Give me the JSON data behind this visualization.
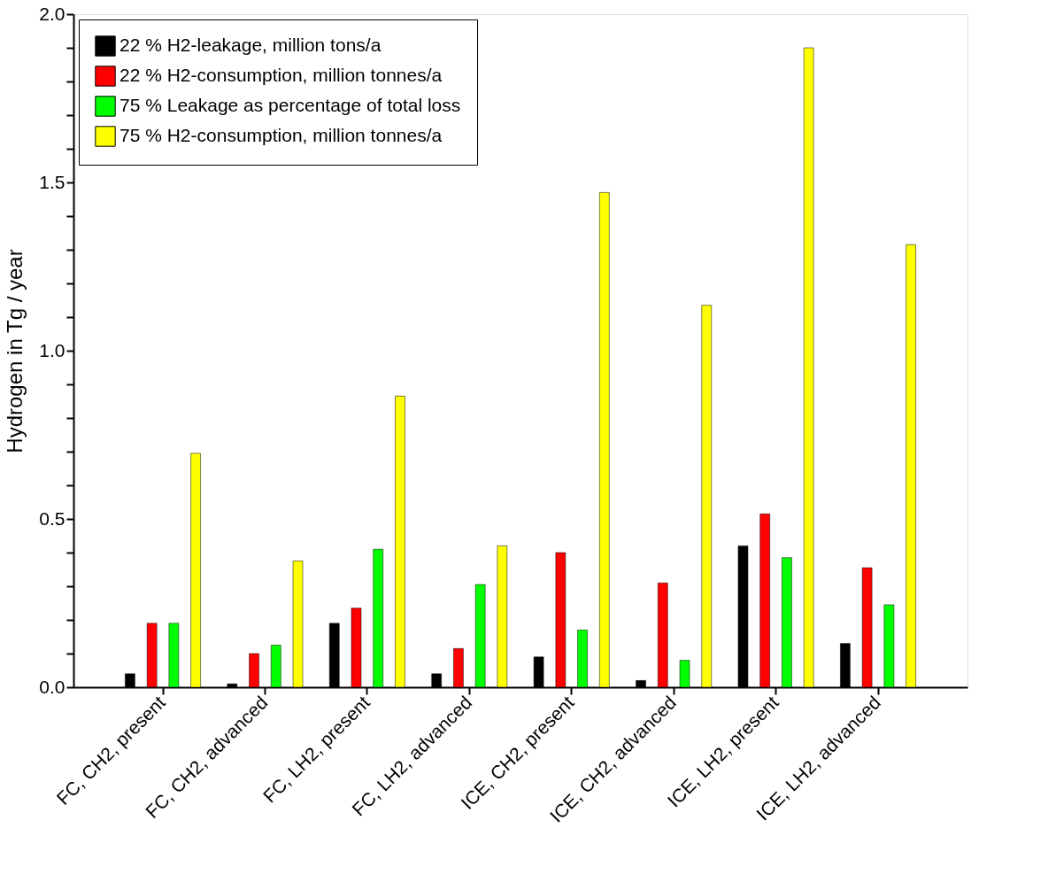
{
  "chart_data": {
    "type": "bar",
    "ylabel": "Hydrogen in Tg / year",
    "categories": [
      "FC, CH2, present",
      "FC, CH2, advanced",
      "FC, LH2, present",
      "FC, LH2, advanced",
      "ICE, CH2, present",
      "ICE, CH2, advanced",
      "ICE, LH2, present",
      "ICE, LH2, advanced"
    ],
    "series": [
      {
        "name": "22 % H2-leakage, million tons/a",
        "color": "#000000",
        "values": [
          0.04,
          0.01,
          0.19,
          0.04,
          0.09,
          0.02,
          0.42,
          0.13
        ]
      },
      {
        "name": "22 % H2-consumption, million tonnes/a",
        "color": "#ff0000",
        "values": [
          0.19,
          0.1,
          0.235,
          0.115,
          0.4,
          0.31,
          0.515,
          0.355
        ]
      },
      {
        "name": "75 % Leakage as percentage of total loss",
        "color": "#00ff00",
        "values": [
          0.19,
          0.125,
          0.41,
          0.305,
          0.17,
          0.08,
          0.385,
          0.245
        ]
      },
      {
        "name": "75 % H2-consumption, million tonnes/a",
        "color": "#ffff00",
        "values": [
          0.695,
          0.375,
          0.865,
          0.42,
          1.47,
          1.135,
          1.9,
          1.315
        ]
      }
    ],
    "ylim": [
      0,
      2.0
    ],
    "yticks": [
      {
        "value": 0,
        "label": "0.0"
      },
      {
        "value": 0.1,
        "label": null
      },
      {
        "value": 0.2,
        "label": null
      },
      {
        "value": 0.3,
        "label": null
      },
      {
        "value": 0.4,
        "label": null
      },
      {
        "value": 0.5,
        "label": "0.5"
      },
      {
        "value": 0.6,
        "label": null
      },
      {
        "value": 0.7,
        "label": null
      },
      {
        "value": 0.8,
        "label": null
      },
      {
        "value": 0.9,
        "label": null
      },
      {
        "value": 1.0,
        "label": "1.0"
      },
      {
        "value": 1.1,
        "label": null
      },
      {
        "value": 1.2,
        "label": null
      },
      {
        "value": 1.3,
        "label": null
      },
      {
        "value": 1.4,
        "label": null
      },
      {
        "value": 1.5,
        "label": "1.5"
      },
      {
        "value": 1.6,
        "label": null
      },
      {
        "value": 1.7,
        "label": null
      },
      {
        "value": 1.8,
        "label": null
      },
      {
        "value": 1.9,
        "label": null
      },
      {
        "value": 2.0,
        "label": "2.0"
      }
    ],
    "grid": false,
    "legend": "top left"
  }
}
